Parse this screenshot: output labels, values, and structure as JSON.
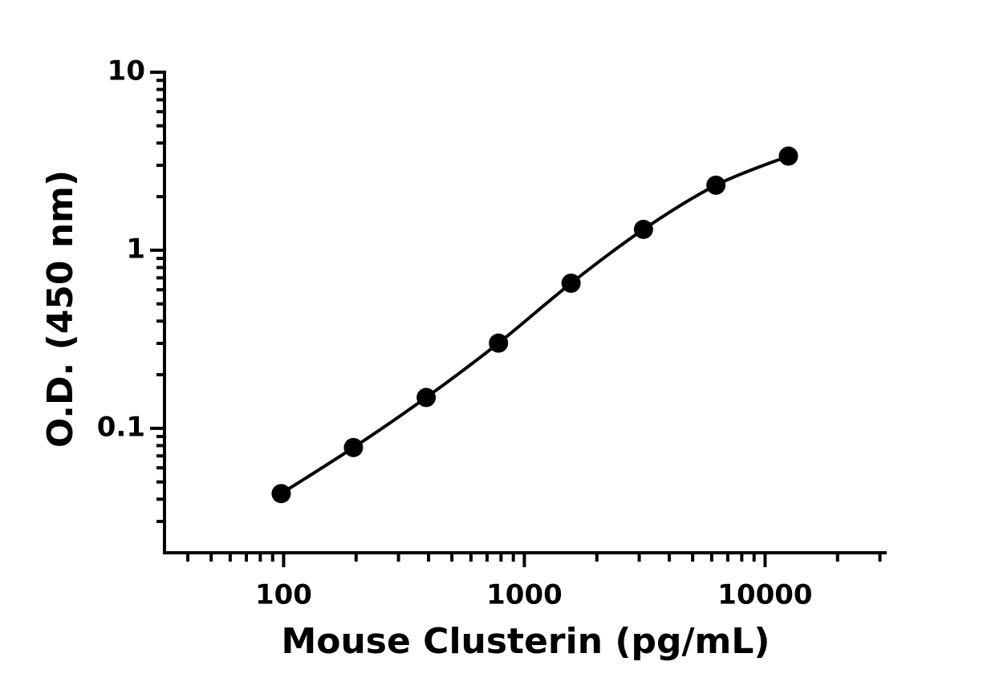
{
  "chart_data": {
    "type": "scatter",
    "x_label": "Mouse Clusterin (pg/mL)",
    "y_label": "O.D. (450 nm)",
    "x_scale": "log",
    "y_scale": "log",
    "fit_line": true,
    "series": [
      {
        "color": "#000000",
        "x": [
          97.7,
          195,
          391,
          781,
          1563,
          3125,
          6250,
          12500
        ],
        "values": [
          0.043,
          0.078,
          0.149,
          0.301,
          0.653,
          1.31,
          2.32,
          3.38
        ]
      }
    ],
    "xlim": [
      32,
      32000
    ],
    "xticks": [
      100,
      1000,
      10000
    ],
    "xminorticks": [
      40,
      50,
      60,
      70,
      80,
      90,
      200,
      300,
      400,
      500,
      600,
      700,
      800,
      900,
      2000,
      3000,
      4000,
      5000,
      6000,
      7000,
      8000,
      9000,
      20000,
      30000
    ],
    "ylim": [
      0.02,
      10
    ],
    "yticks": [
      0.1,
      1,
      10
    ],
    "yminorticks": [
      0.03,
      0.04,
      0.05,
      0.06,
      0.07,
      0.08,
      0.09,
      0.2,
      0.3,
      0.4,
      0.5,
      0.6,
      0.7,
      0.8,
      0.9,
      2,
      3,
      4,
      5,
      6,
      7,
      8,
      9
    ]
  }
}
